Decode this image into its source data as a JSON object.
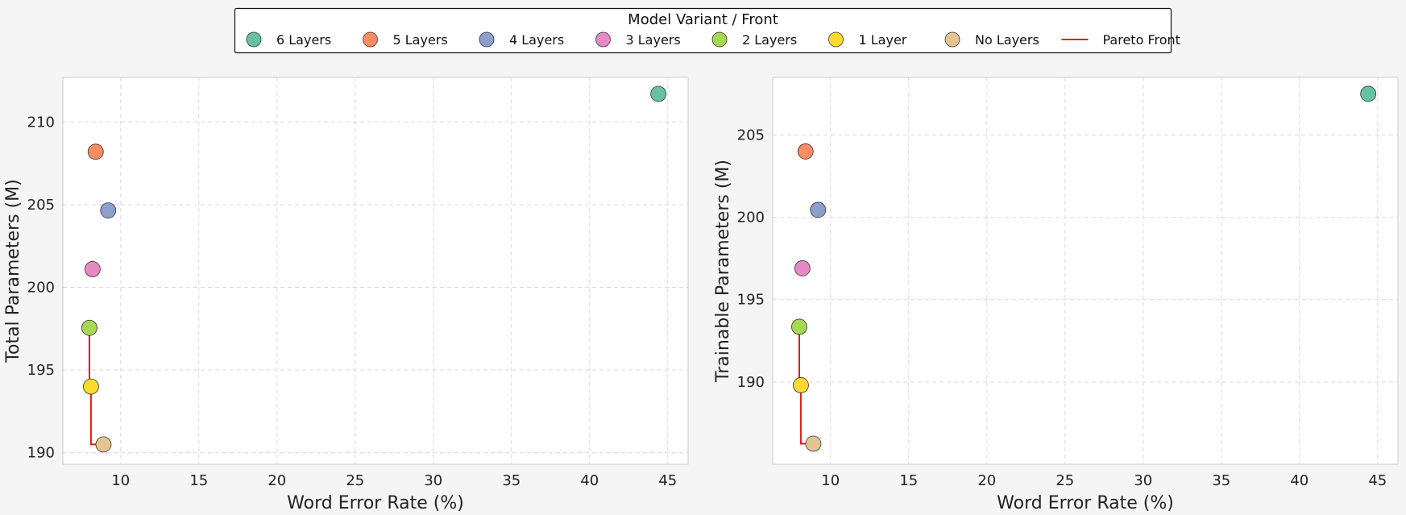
{
  "legend": {
    "title": "Model Variant / Front",
    "pareto_label": "Pareto Front",
    "pareto_color": "#e41a1c"
  },
  "variants": [
    {
      "name": "6 Layers",
      "color": "#66c2a5"
    },
    {
      "name": "5 Layers",
      "color": "#fc8d62"
    },
    {
      "name": "4 Layers",
      "color": "#8da0cb"
    },
    {
      "name": "3 Layers",
      "color": "#e78ac3"
    },
    {
      "name": "2 Layers",
      "color": "#a6d854"
    },
    {
      "name": "1 Layer",
      "color": "#ffd92f"
    },
    {
      "name": "No Layers",
      "color": "#e5c494"
    }
  ],
  "chart_data": [
    {
      "type": "scatter",
      "xlabel": "Word Error Rate (%)",
      "ylabel": "Total Parameters (M)",
      "xlim": [
        6.3,
        46.3
      ],
      "ylim": [
        189.3,
        212.7
      ],
      "xticks": [
        10,
        15,
        20,
        25,
        30,
        35,
        40,
        45
      ],
      "yticks": [
        190,
        195,
        200,
        205,
        210
      ],
      "grid": true,
      "points": [
        {
          "series": "6 Layers",
          "x": 44.4,
          "y": 211.7
        },
        {
          "series": "5 Layers",
          "x": 8.4,
          "y": 208.2
        },
        {
          "series": "4 Layers",
          "x": 9.2,
          "y": 204.65
        },
        {
          "series": "3 Layers",
          "x": 8.2,
          "y": 201.1
        },
        {
          "series": "2 Layers",
          "x": 8.0,
          "y": 197.55
        },
        {
          "series": "1 Layer",
          "x": 8.1,
          "y": 194.0
        },
        {
          "series": "No Layers",
          "x": 8.9,
          "y": 190.5
        }
      ],
      "pareto_front": [
        {
          "x": 8.0,
          "y": 197.55
        },
        {
          "x": 8.1,
          "y": 194.0
        },
        {
          "x": 8.9,
          "y": 190.5
        }
      ]
    },
    {
      "type": "scatter",
      "xlabel": "Word Error Rate (%)",
      "ylabel": "Trainable Parameters (M)",
      "xlim": [
        6.3,
        46.3
      ],
      "ylim": [
        185.0,
        208.5
      ],
      "xticks": [
        10,
        15,
        20,
        25,
        30,
        35,
        40,
        45
      ],
      "yticks": [
        190,
        195,
        200,
        205
      ],
      "grid": true,
      "points": [
        {
          "series": "6 Layers",
          "x": 44.4,
          "y": 207.5
        },
        {
          "series": "5 Layers",
          "x": 8.4,
          "y": 204.0
        },
        {
          "series": "4 Layers",
          "x": 9.2,
          "y": 200.45
        },
        {
          "series": "3 Layers",
          "x": 8.2,
          "y": 196.9
        },
        {
          "series": "2 Layers",
          "x": 8.0,
          "y": 193.35
        },
        {
          "series": "1 Layer",
          "x": 8.1,
          "y": 189.8
        },
        {
          "series": "No Layers",
          "x": 8.9,
          "y": 186.25
        }
      ],
      "pareto_front": [
        {
          "x": 8.0,
          "y": 193.35
        },
        {
          "x": 8.1,
          "y": 189.8
        },
        {
          "x": 8.9,
          "y": 186.25
        }
      ]
    }
  ]
}
